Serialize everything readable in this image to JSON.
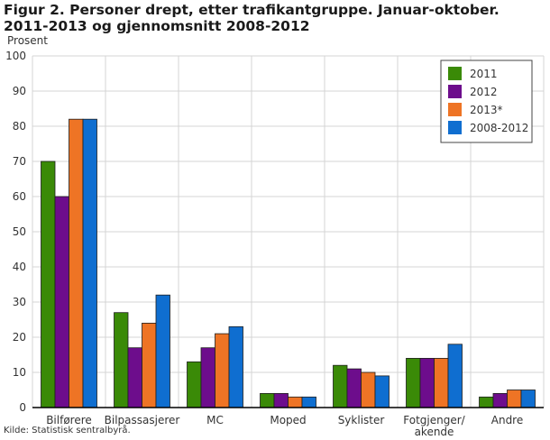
{
  "title": "Figur 2. Personer drept, etter trafikantgruppe.  Januar-oktober. 2011-2013 og gjennomsnitt 2008-2012",
  "ylabel": "Prosent",
  "source": "Kilde: Statistisk sentralbyrå.",
  "chart_data": {
    "type": "bar",
    "title": "Figur 2. Personer drept, etter trafikantgruppe.  Januar-oktober. 2011-2013 og gjennomsnitt 2008-2012",
    "ylabel": "Prosent",
    "xlabel": "",
    "ylim": [
      0,
      100
    ],
    "yticks": [
      0,
      10,
      20,
      30,
      40,
      50,
      60,
      70,
      80,
      90,
      100
    ],
    "grid": true,
    "legend_position": "top-right",
    "categories": [
      "Bilførere",
      "Bilpassasjerer",
      "MC",
      "Moped",
      "Syklister",
      "Fotgjenger/\nakende",
      "Andre"
    ],
    "series": [
      {
        "name": "2011",
        "color": "#3a8a07",
        "values": [
          70,
          27,
          13,
          4,
          12,
          14,
          3
        ]
      },
      {
        "name": "2012",
        "color": "#6d0d8c",
        "values": [
          60,
          17,
          17,
          4,
          11,
          14,
          4
        ]
      },
      {
        "name": "2013*",
        "color": "#ee7425",
        "values": [
          82,
          24,
          21,
          3,
          10,
          14,
          5
        ]
      },
      {
        "name": "2008-2012",
        "color": "#0f6ed0",
        "values": [
          82,
          32,
          23,
          3,
          9,
          18,
          5
        ]
      }
    ]
  }
}
